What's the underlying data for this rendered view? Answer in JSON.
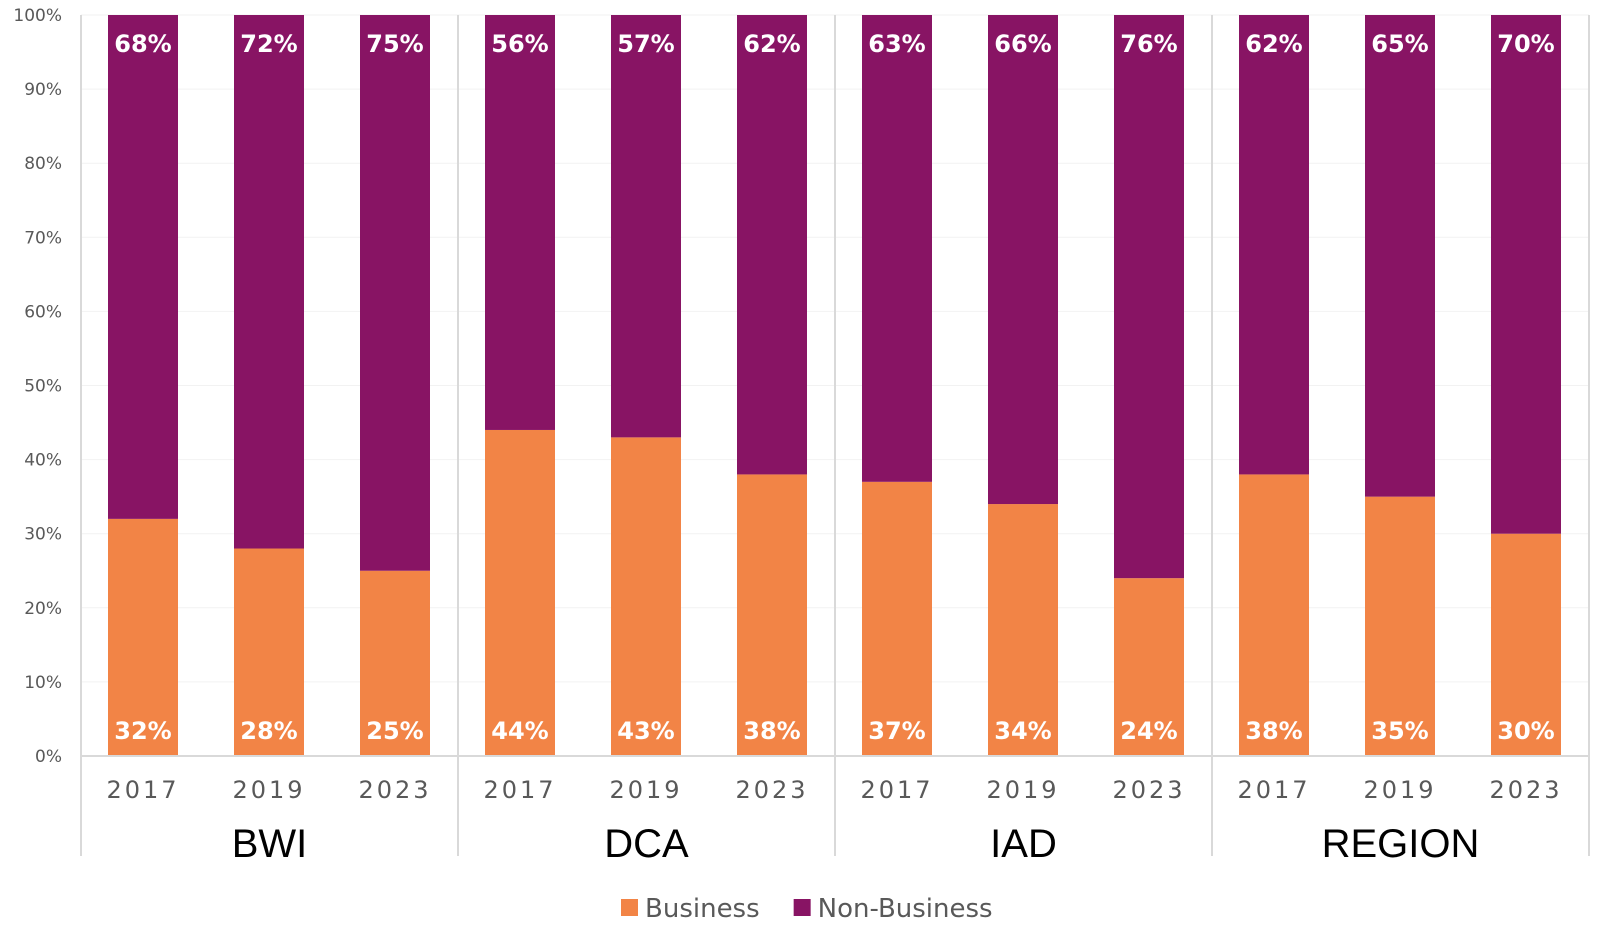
{
  "chart_data": {
    "type": "bar",
    "stacked": true,
    "groups": [
      "BWI",
      "DCA",
      "IAD",
      "REGION"
    ],
    "categories": [
      "2017",
      "2019",
      "2023"
    ],
    "series": [
      {
        "name": "Business",
        "color": "#F28446",
        "values": [
          [
            32,
            28,
            25
          ],
          [
            44,
            43,
            38
          ],
          [
            37,
            34,
            24
          ],
          [
            38,
            35,
            30
          ]
        ],
        "labels": [
          [
            "32%",
            "28%",
            "25%"
          ],
          [
            "44%",
            "43%",
            "38%"
          ],
          [
            "37%",
            "34%",
            "24%"
          ],
          [
            "38%",
            "35%",
            "30%"
          ]
        ]
      },
      {
        "name": "Non-Business",
        "color": "#881464",
        "values": [
          [
            68,
            72,
            75
          ],
          [
            56,
            57,
            62
          ],
          [
            63,
            66,
            76
          ],
          [
            62,
            65,
            70
          ]
        ],
        "labels": [
          [
            "68%",
            "72%",
            "75%"
          ],
          [
            "56%",
            "57%",
            "62%"
          ],
          [
            "63%",
            "66%",
            "76%"
          ],
          [
            "62%",
            "65%",
            "70%"
          ]
        ]
      }
    ],
    "ylim": [
      0,
      100
    ],
    "yticks": [
      "0%",
      "10%",
      "20%",
      "30%",
      "40%",
      "50%",
      "60%",
      "70%",
      "80%",
      "90%",
      "100%"
    ],
    "grid": true,
    "legend": "bottom",
    "title": "",
    "xlabel": "",
    "ylabel": ""
  }
}
